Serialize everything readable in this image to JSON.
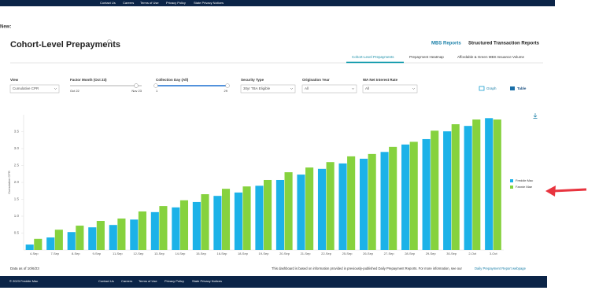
{
  "nav": {
    "copyright": "© 2023 Freddie Mac",
    "links": [
      "Contact Us",
      "Careers",
      "Terms of Use",
      "Privacy Policy",
      "State Privacy Notices"
    ]
  },
  "notice": "New:",
  "header": {
    "title": "Cohort-Level Prepayments",
    "links": [
      "MBS Reports",
      "Structured Transaction Reports"
    ]
  },
  "tabs": [
    "Cohort-Level Prepayments",
    "Prepayment Heatmap",
    "Affordable & Green MBS Issuance Volume"
  ],
  "filters": {
    "view": {
      "label": "View",
      "value": "Cumulative CPR"
    },
    "factor_month": {
      "label": "Factor Month (Oct 23)",
      "min": "Oct 22",
      "max": "Nov 23"
    },
    "collection_day": {
      "label": "Collection Day (All)",
      "min": "1",
      "max": "29"
    },
    "security_type": {
      "label": "Security Type",
      "value": "30yr TBA Eligible"
    },
    "origination_year": {
      "label": "Origination Year",
      "value": "All"
    },
    "wa_net_interest_rate": {
      "label": "WA Net Interest Rate",
      "value": "All"
    }
  },
  "toggles": [
    "Graph",
    "Table"
  ],
  "footer": {
    "as_of": "Data as of 10/6/23",
    "note": "This dashboard is based on information provided in previously-published Daily Prepayment Reports. For more information, see our",
    "link": "Daily Prepayment Report webpage"
  },
  "chart_data": {
    "type": "bar",
    "y_label": "Cumulative CPR",
    "categories": [
      "4-Sep",
      "7-Sep",
      "8-Sep",
      "9-Sep",
      "11-Sep",
      "12-Sep",
      "13-Sep",
      "14-Sep",
      "15-Sep",
      "16-Sep",
      "18-Sep",
      "19-Sep",
      "20-Sep",
      "21-Sep",
      "22-Sep",
      "25-Sep",
      "26-Sep",
      "27-Sep",
      "28-Sep",
      "29-Sep",
      "30-Sep",
      "2-Oct",
      "3-Oct"
    ],
    "series": [
      {
        "name": "Freddie Mac",
        "color": "#1cb2e8",
        "values": [
          0.16,
          0.37,
          0.53,
          0.67,
          0.74,
          0.9,
          1.12,
          1.26,
          1.42,
          1.6,
          1.7,
          1.9,
          2.07,
          2.23,
          2.4,
          2.56,
          2.7,
          2.9,
          3.12,
          3.28,
          3.51,
          3.67,
          3.9
        ]
      },
      {
        "name": "Fannie Mae",
        "color": "#86d23e",
        "values": [
          0.33,
          0.6,
          0.72,
          0.86,
          0.93,
          1.14,
          1.3,
          1.47,
          1.65,
          1.81,
          1.88,
          2.07,
          2.3,
          2.44,
          2.6,
          2.77,
          2.84,
          3.05,
          3.2,
          3.53,
          3.72,
          3.86,
          3.86
        ]
      }
    ],
    "ylim": [
      0,
      4
    ],
    "yticks": [
      0.5,
      {
        "value": 1,
        "label": "1.0"
      },
      1.5,
      {
        "value": 2,
        "label": "2.0"
      },
      2.5,
      {
        "value": 3,
        "label": "3.0"
      },
      3.5
    ],
    "grid": false,
    "legend": "right"
  }
}
